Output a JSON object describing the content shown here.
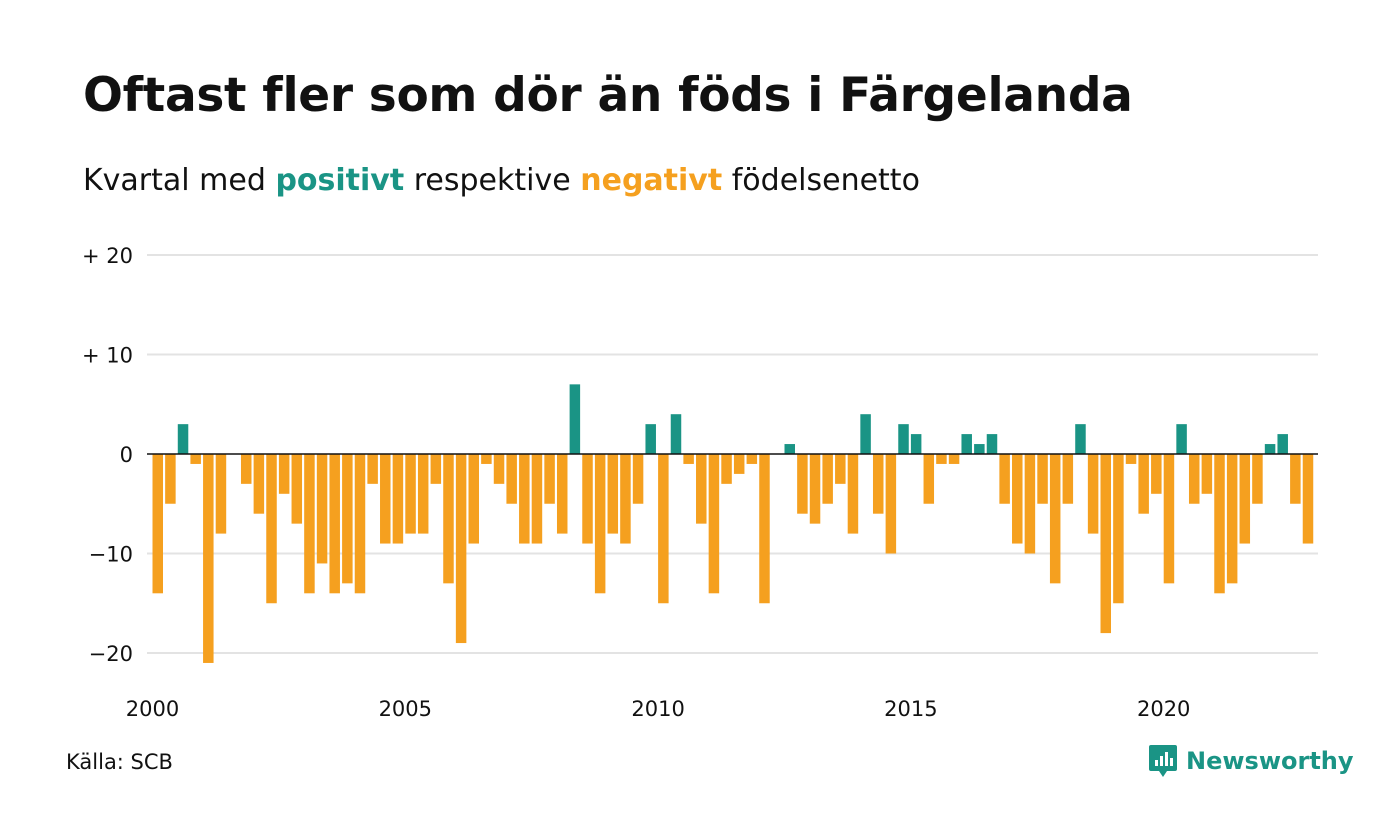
{
  "title": "Oftast fler som dör än föds i Färgelanda",
  "subtitle": {
    "prefix": "Kvartal med",
    "positive_word": "positivt",
    "middle": "respektive",
    "negative_word": "negativt",
    "suffix": "födelsenetto"
  },
  "colors": {
    "positive": "#1a9485",
    "negative": "#f5a01f",
    "grid": "#e3e3e3",
    "zero_line": "#111111"
  },
  "source": "Källa: SCB",
  "brand": {
    "name": "Newsworthy",
    "icon": "newsworthy-logo-icon"
  },
  "chart_data": {
    "type": "bar",
    "title": "Oftast fler som dör än föds i Färgelanda",
    "subtitle": "Kvartal med positivt respektive negativt födelsenetto",
    "ylim": [
      -23,
      20
    ],
    "y_ticks": [
      {
        "value": 20,
        "label": "+ 20"
      },
      {
        "value": 10,
        "label": "+ 10"
      },
      {
        "value": 0,
        "label": "0"
      },
      {
        "value": -10,
        "label": "−10"
      },
      {
        "value": -20,
        "label": "−20"
      }
    ],
    "x_ticks": [
      {
        "value": 2000,
        "label": "2000"
      },
      {
        "value": 2005,
        "label": "2005"
      },
      {
        "value": 2010,
        "label": "2010"
      },
      {
        "value": 2015,
        "label": "2015"
      },
      {
        "value": 2020,
        "label": "2020"
      }
    ],
    "grid": true,
    "legend": "in subtitle",
    "start_year": 2000,
    "values": [
      -14,
      -5,
      3,
      -1,
      -21,
      -8,
      0,
      -3,
      -6,
      -15,
      -4,
      -7,
      -14,
      -11,
      -14,
      -13,
      -14,
      -3,
      -9,
      -9,
      -8,
      -8,
      -3,
      -13,
      -19,
      -9,
      -1,
      -3,
      -5,
      -9,
      -9,
      -5,
      -8,
      7,
      -9,
      -14,
      -8,
      -9,
      -5,
      3,
      -15,
      4,
      -1,
      -7,
      -14,
      -3,
      -2,
      -1,
      -15,
      0,
      1,
      -6,
      -7,
      -5,
      -3,
      -8,
      4,
      -6,
      -10,
      3,
      2,
      -5,
      -1,
      -1,
      2,
      1,
      2,
      -5,
      -9,
      -10,
      -5,
      -13,
      -5,
      3,
      -8,
      -18,
      -15,
      -1,
      -6,
      -4,
      -13,
      3,
      -5,
      -4,
      -14,
      -13,
      -9,
      -5,
      1,
      2,
      -5,
      -9
    ]
  }
}
